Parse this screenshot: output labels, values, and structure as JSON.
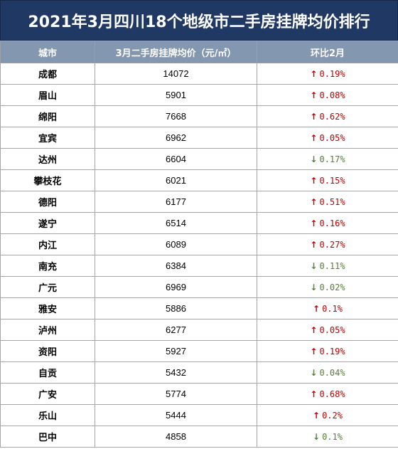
{
  "title": "2021年3月四川18个地级市二手房挂牌均价排行",
  "headers": {
    "city": "城市",
    "price": "3月二手房挂牌均价（元/㎡）",
    "change": "环比2月"
  },
  "colors": {
    "title_bg": "#1f3864",
    "header_bg": "#8497b0",
    "up": "#c00000",
    "down": "#548235"
  },
  "rows": [
    {
      "city": "成都",
      "price": "14072",
      "dir": "up",
      "change": "0.19%"
    },
    {
      "city": "眉山",
      "price": "5901",
      "dir": "up",
      "change": "0.08%"
    },
    {
      "city": "绵阳",
      "price": "7668",
      "dir": "up",
      "change": "0.62%"
    },
    {
      "city": "宜宾",
      "price": "6962",
      "dir": "up",
      "change": "0.05%"
    },
    {
      "city": "达州",
      "price": "6604",
      "dir": "down",
      "change": "0.17%"
    },
    {
      "city": "攀枝花",
      "price": "6021",
      "dir": "up",
      "change": "0.15%"
    },
    {
      "city": "德阳",
      "price": "6177",
      "dir": "up",
      "change": "0.51%"
    },
    {
      "city": "遂宁",
      "price": "6514",
      "dir": "up",
      "change": "0.16%"
    },
    {
      "city": "内江",
      "price": "6089",
      "dir": "up",
      "change": "0.27%"
    },
    {
      "city": "南充",
      "price": "6384",
      "dir": "down",
      "change": "0.11%"
    },
    {
      "city": "广元",
      "price": "6969",
      "dir": "down",
      "change": "0.02%"
    },
    {
      "city": "雅安",
      "price": "5886",
      "dir": "up",
      "change": "0.1%"
    },
    {
      "city": "泸州",
      "price": "6277",
      "dir": "up",
      "change": "0.05%"
    },
    {
      "city": "资阳",
      "price": "5927",
      "dir": "up",
      "change": "0.19%"
    },
    {
      "city": "自贡",
      "price": "5432",
      "dir": "down",
      "change": "0.04%"
    },
    {
      "city": "广安",
      "price": "5774",
      "dir": "up",
      "change": "0.68%"
    },
    {
      "city": "乐山",
      "price": "5444",
      "dir": "up",
      "change": "0.2%"
    },
    {
      "city": "巴中",
      "price": "4858",
      "dir": "down",
      "change": "0.1%"
    }
  ]
}
